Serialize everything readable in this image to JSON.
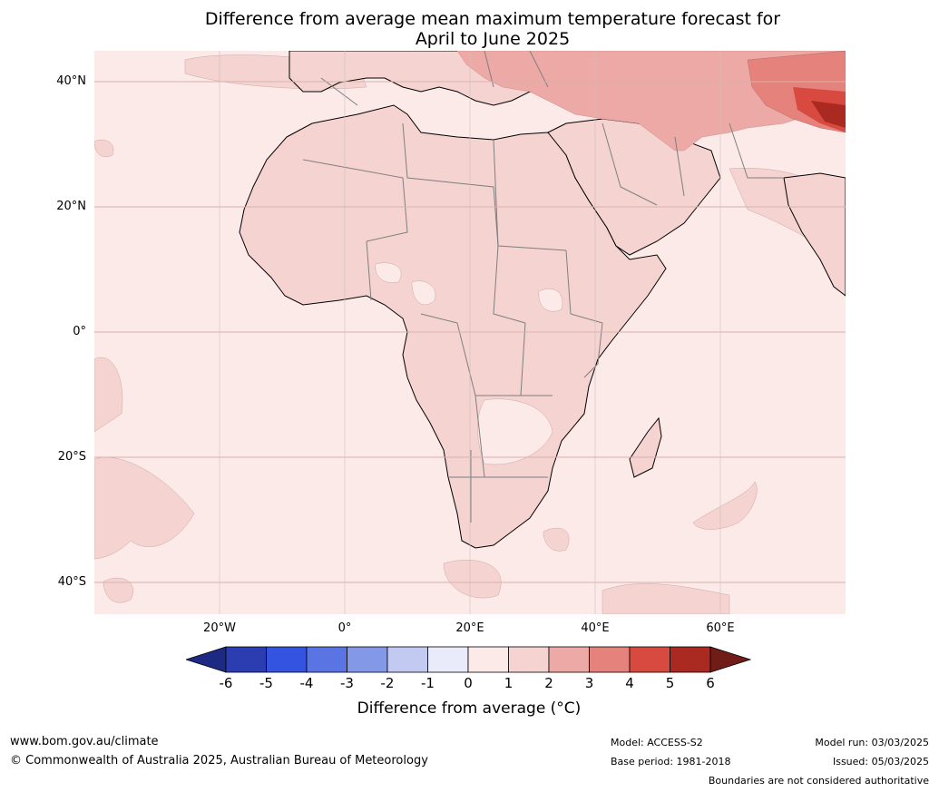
{
  "title": {
    "line1": "Difference from average mean maximum temperature forecast for",
    "line2": "April to June 2025"
  },
  "map": {
    "lat_labels": [
      "40°N",
      "20°N",
      "0°",
      "20°S",
      "40°S"
    ],
    "lon_labels": [
      "20°W",
      "0°",
      "20°E",
      "40°E",
      "60°E"
    ],
    "lat_values": [
      40,
      20,
      0,
      -20,
      -40
    ],
    "lon_values": [
      -20,
      0,
      20,
      40,
      60
    ],
    "extent": {
      "lon": [
        -40,
        80
      ],
      "lat": [
        -45,
        45
      ]
    }
  },
  "colorbar": {
    "ticks": [
      "-6",
      "-5",
      "-4",
      "-3",
      "-2",
      "-1",
      "0",
      "1",
      "2",
      "3",
      "4",
      "5",
      "6"
    ],
    "colors": [
      "#1c2a84",
      "#2b3db1",
      "#3453e0",
      "#5a74e4",
      "#8498e8",
      "#c2caf2",
      "#e9ebfb",
      "#fbeae8",
      "#f5d3d0",
      "#eda9a5",
      "#e5827c",
      "#d84a40",
      "#aa2a22",
      "#701c17"
    ],
    "label": "Difference from average (°C)"
  },
  "footer": {
    "website": "www.bom.gov.au/climate",
    "copyright": "© Commonwealth of Australia 2025, Australian Bureau of Meteorology",
    "model": "Model: ACCESS-S2",
    "base_period": "Base period: 1981-2018",
    "model_run": "Model run: 03/03/2025",
    "issued": "Issued: 05/03/2025",
    "disclaimer": "Boundaries are not considered authoritative"
  }
}
